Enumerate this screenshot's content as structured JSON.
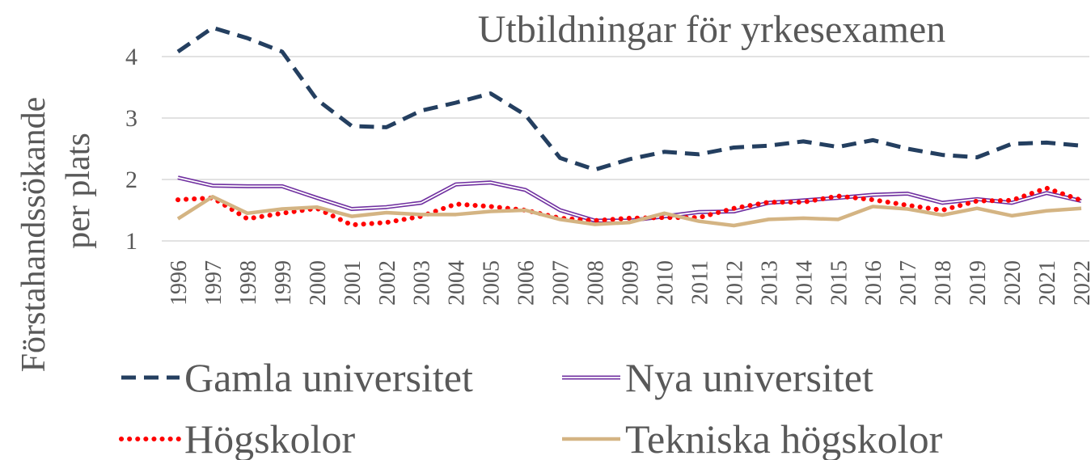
{
  "chart_data": {
    "type": "line",
    "title": "Utbildningar för yrkesexamen",
    "ylabel": [
      "Förstahandssökande",
      "per plats"
    ],
    "categories": [
      "1996",
      "1997",
      "1998",
      "1999",
      "2000",
      "2001",
      "2002",
      "2003",
      "2004",
      "2005",
      "2006",
      "2007",
      "2008",
      "2009",
      "2010",
      "2011",
      "2012",
      "2013",
      "2014",
      "2015",
      "2016",
      "2017",
      "2018",
      "2019",
      "2020",
      "2021",
      "2022"
    ],
    "series": [
      {
        "name": "Gamla universitet",
        "color": "#243f60",
        "style": "dashed",
        "values": [
          4.08,
          4.47,
          4.3,
          4.08,
          3.3,
          2.87,
          2.85,
          3.12,
          3.25,
          3.4,
          3.05,
          2.35,
          2.16,
          2.33,
          2.45,
          2.41,
          2.52,
          2.55,
          2.62,
          2.53,
          2.64,
          2.5,
          2.4,
          2.36,
          2.58,
          2.6,
          2.55
        ]
      },
      {
        "name": "Nya universitet",
        "color": "#7030a0",
        "style": "double",
        "values": [
          2.03,
          1.9,
          1.89,
          1.89,
          1.7,
          1.52,
          1.55,
          1.62,
          1.92,
          1.95,
          1.83,
          1.5,
          1.33,
          1.33,
          1.4,
          1.47,
          1.48,
          1.62,
          1.66,
          1.7,
          1.75,
          1.77,
          1.62,
          1.68,
          1.62,
          1.78,
          1.65
        ]
      },
      {
        "name": "Högskolor",
        "color": "#ff0000",
        "style": "dotted",
        "values": [
          1.67,
          1.7,
          1.36,
          1.45,
          1.53,
          1.26,
          1.3,
          1.4,
          1.6,
          1.56,
          1.5,
          1.37,
          1.33,
          1.37,
          1.38,
          1.38,
          1.53,
          1.63,
          1.63,
          1.73,
          1.67,
          1.58,
          1.5,
          1.65,
          1.66,
          1.86,
          1.66
        ]
      },
      {
        "name": "Tekniska högskolor",
        "color": "#d4b483",
        "style": "solid",
        "values": [
          1.36,
          1.72,
          1.45,
          1.52,
          1.55,
          1.4,
          1.46,
          1.43,
          1.43,
          1.48,
          1.5,
          1.35,
          1.27,
          1.3,
          1.45,
          1.32,
          1.25,
          1.35,
          1.37,
          1.35,
          1.56,
          1.52,
          1.42,
          1.53,
          1.41,
          1.49,
          1.53
        ]
      }
    ],
    "ylim": [
      1,
      4.5
    ],
    "yticks": [
      1,
      2,
      3,
      4
    ],
    "grid": true,
    "legend": "bottom"
  }
}
